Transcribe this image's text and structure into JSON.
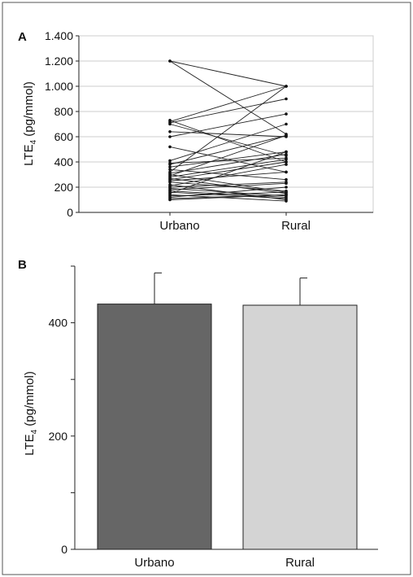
{
  "chart_data": [
    {
      "panel_label": "A",
      "type": "line",
      "ylabel_base": "LTE",
      "ylabel_sub": "4",
      "ylabel_rest": " (pg/mmol)",
      "categories": [
        "Urbano",
        "Rural"
      ],
      "ylim": [
        0,
        1400
      ],
      "yticks": [
        0,
        200,
        400,
        600,
        800,
        1000,
        1200,
        1400
      ],
      "ytick_labels": [
        "0",
        "200",
        "400",
        "600",
        "800",
        "1.000",
        "1.200",
        "1.400"
      ],
      "grid": true,
      "pairs": [
        [
          1200,
          620
        ],
        [
          1200,
          1000
        ],
        [
          730,
          400
        ],
        [
          720,
          1000
        ],
        [
          710,
          900
        ],
        [
          700,
          450
        ],
        [
          640,
          600
        ],
        [
          600,
          780
        ],
        [
          520,
          320
        ],
        [
          410,
          700
        ],
        [
          390,
          430
        ],
        [
          380,
          610
        ],
        [
          360,
          480
        ],
        [
          340,
          260
        ],
        [
          320,
          1000
        ],
        [
          310,
          460
        ],
        [
          300,
          160
        ],
        [
          290,
          610
        ],
        [
          280,
          420
        ],
        [
          270,
          150
        ],
        [
          260,
          400
        ],
        [
          250,
          320
        ],
        [
          240,
          170
        ],
        [
          220,
          100
        ],
        [
          210,
          380
        ],
        [
          200,
          240
        ],
        [
          190,
          130
        ],
        [
          180,
          230
        ],
        [
          170,
          120
        ],
        [
          160,
          110
        ],
        [
          150,
          480
        ],
        [
          140,
          90
        ],
        [
          130,
          160
        ],
        [
          120,
          200
        ],
        [
          110,
          140
        ],
        [
          100,
          140
        ]
      ]
    },
    {
      "panel_label": "B",
      "type": "bar",
      "ylabel_base": "LTE",
      "ylabel_sub": "4",
      "ylabel_rest": " (pg/mmol)",
      "categories": [
        "Urbano",
        "Rural"
      ],
      "values": [
        433,
        431
      ],
      "errors": [
        55,
        48
      ],
      "colors": [
        "#666666",
        "#d4d4d4"
      ],
      "ylim": [
        0,
        500
      ],
      "yticks": [
        0,
        100,
        200,
        300,
        400,
        500
      ],
      "ytick_labels": [
        "0",
        "",
        "200",
        "",
        "400",
        ""
      ]
    }
  ]
}
